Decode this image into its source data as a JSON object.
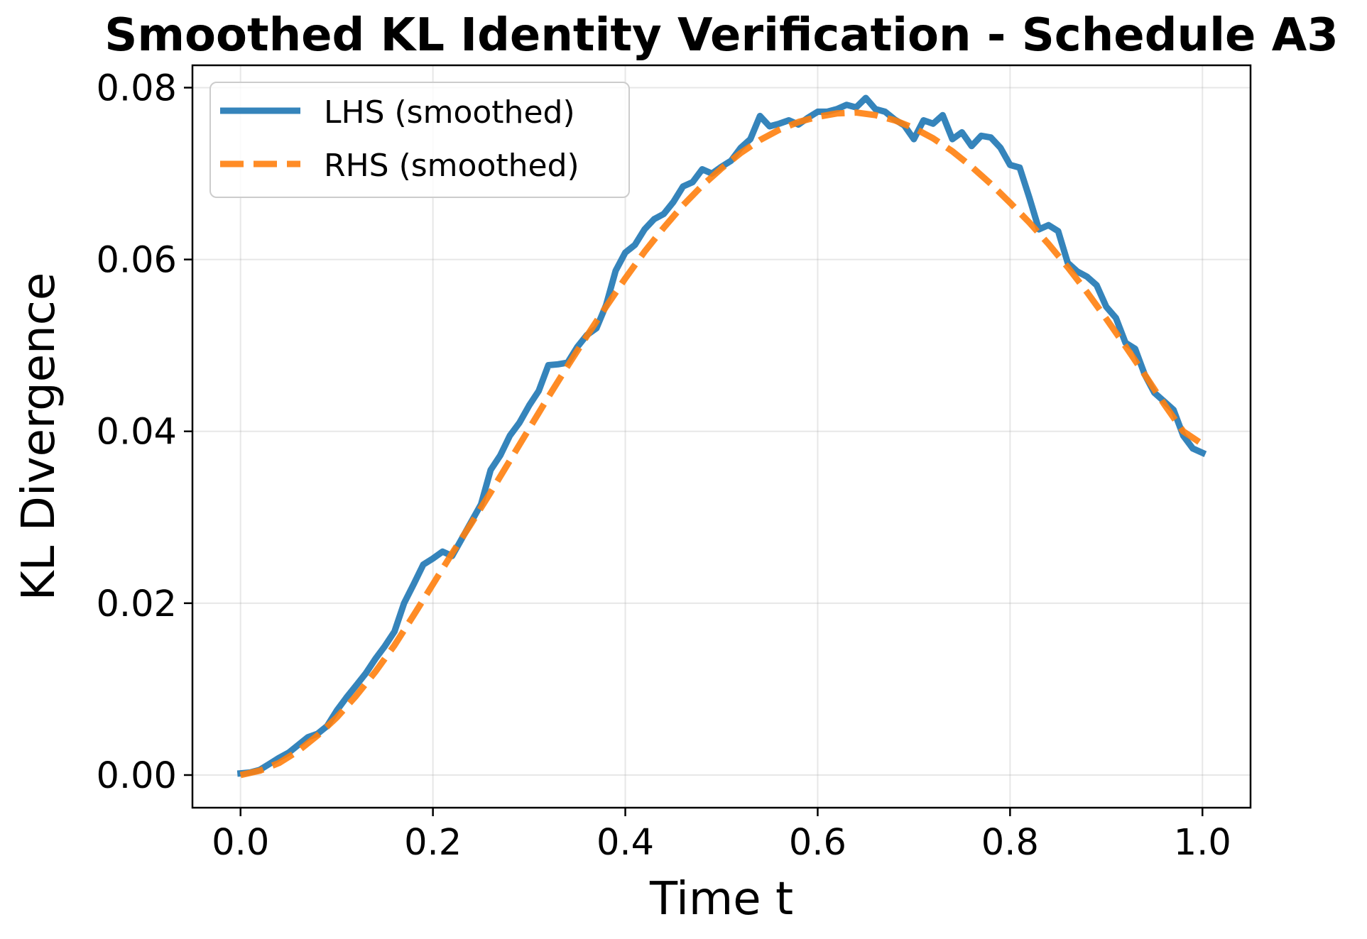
{
  "chart_data": {
    "type": "line",
    "title": "Smoothed KL Identity Verification - Schedule A3",
    "xlabel": "Time t",
    "ylabel": "KL Divergence",
    "xlim": [
      -0.05,
      1.05
    ],
    "ylim": [
      -0.0038,
      0.0826
    ],
    "x_ticks": [
      0.0,
      0.2,
      0.4,
      0.6,
      0.8,
      1.0
    ],
    "x_tick_labels": [
      "0.0",
      "0.2",
      "0.4",
      "0.6",
      "0.8",
      "1.0"
    ],
    "y_ticks": [
      0.0,
      0.02,
      0.04,
      0.06,
      0.08
    ],
    "y_tick_labels": [
      "0.00",
      "0.02",
      "0.04",
      "0.06",
      "0.08"
    ],
    "grid": true,
    "legend_position": "upper-left",
    "series": [
      {
        "name": "LHS (smoothed)",
        "color": "#1f77b4",
        "style": "solid",
        "points": [
          [
            0.0,
            0.0002
          ],
          [
            0.01,
            0.0003
          ],
          [
            0.02,
            0.0006
          ],
          [
            0.03,
            0.0013
          ],
          [
            0.04,
            0.002
          ],
          [
            0.05,
            0.0026
          ],
          [
            0.06,
            0.0035
          ],
          [
            0.07,
            0.0044
          ],
          [
            0.08,
            0.0048
          ],
          [
            0.09,
            0.0057
          ],
          [
            0.1,
            0.0075
          ],
          [
            0.11,
            0.009
          ],
          [
            0.12,
            0.0104
          ],
          [
            0.13,
            0.0118
          ],
          [
            0.14,
            0.0135
          ],
          [
            0.15,
            0.015
          ],
          [
            0.16,
            0.0167
          ],
          [
            0.17,
            0.02
          ],
          [
            0.18,
            0.0222
          ],
          [
            0.19,
            0.0245
          ],
          [
            0.2,
            0.0252
          ],
          [
            0.21,
            0.026
          ],
          [
            0.22,
            0.0255
          ],
          [
            0.23,
            0.0275
          ],
          [
            0.24,
            0.0295
          ],
          [
            0.25,
            0.0315
          ],
          [
            0.26,
            0.0355
          ],
          [
            0.27,
            0.0372
          ],
          [
            0.28,
            0.0395
          ],
          [
            0.29,
            0.041
          ],
          [
            0.3,
            0.043
          ],
          [
            0.31,
            0.0447
          ],
          [
            0.32,
            0.0477
          ],
          [
            0.33,
            0.0478
          ],
          [
            0.34,
            0.048
          ],
          [
            0.35,
            0.0498
          ],
          [
            0.36,
            0.0512
          ],
          [
            0.37,
            0.052
          ],
          [
            0.38,
            0.0547
          ],
          [
            0.39,
            0.0587
          ],
          [
            0.4,
            0.0608
          ],
          [
            0.41,
            0.0617
          ],
          [
            0.42,
            0.0635
          ],
          [
            0.43,
            0.0647
          ],
          [
            0.44,
            0.0653
          ],
          [
            0.45,
            0.0667
          ],
          [
            0.46,
            0.0685
          ],
          [
            0.47,
            0.069
          ],
          [
            0.48,
            0.0705
          ],
          [
            0.49,
            0.07
          ],
          [
            0.5,
            0.0708
          ],
          [
            0.51,
            0.0715
          ],
          [
            0.52,
            0.073
          ],
          [
            0.53,
            0.074
          ],
          [
            0.54,
            0.0767
          ],
          [
            0.55,
            0.0755
          ],
          [
            0.56,
            0.0758
          ],
          [
            0.57,
            0.0762
          ],
          [
            0.58,
            0.0757
          ],
          [
            0.59,
            0.0765
          ],
          [
            0.6,
            0.0772
          ],
          [
            0.61,
            0.0772
          ],
          [
            0.62,
            0.0775
          ],
          [
            0.63,
            0.078
          ],
          [
            0.64,
            0.0777
          ],
          [
            0.65,
            0.0788
          ],
          [
            0.66,
            0.0775
          ],
          [
            0.67,
            0.0772
          ],
          [
            0.68,
            0.0763
          ],
          [
            0.69,
            0.0756
          ],
          [
            0.7,
            0.074
          ],
          [
            0.71,
            0.0762
          ],
          [
            0.72,
            0.0758
          ],
          [
            0.73,
            0.0768
          ],
          [
            0.74,
            0.074
          ],
          [
            0.75,
            0.0748
          ],
          [
            0.76,
            0.0732
          ],
          [
            0.77,
            0.0744
          ],
          [
            0.78,
            0.0742
          ],
          [
            0.79,
            0.073
          ],
          [
            0.8,
            0.071
          ],
          [
            0.81,
            0.0707
          ],
          [
            0.82,
            0.0672
          ],
          [
            0.83,
            0.0635
          ],
          [
            0.84,
            0.064
          ],
          [
            0.85,
            0.0633
          ],
          [
            0.86,
            0.0596
          ],
          [
            0.87,
            0.0586
          ],
          [
            0.88,
            0.058
          ],
          [
            0.89,
            0.057
          ],
          [
            0.9,
            0.0545
          ],
          [
            0.91,
            0.0532
          ],
          [
            0.92,
            0.0503
          ],
          [
            0.93,
            0.0496
          ],
          [
            0.94,
            0.0466
          ],
          [
            0.95,
            0.0445
          ],
          [
            0.96,
            0.0435
          ],
          [
            0.97,
            0.0425
          ],
          [
            0.98,
            0.0395
          ],
          [
            0.99,
            0.038
          ],
          [
            1.0,
            0.0375
          ]
        ]
      },
      {
        "name": "RHS (smoothed)",
        "color": "#ff7f0e",
        "style": "dashed",
        "points": [
          [
            0.0,
            0.0
          ],
          [
            0.02,
            0.0005
          ],
          [
            0.04,
            0.0014
          ],
          [
            0.06,
            0.0028
          ],
          [
            0.08,
            0.0046
          ],
          [
            0.1,
            0.0067
          ],
          [
            0.12,
            0.0092
          ],
          [
            0.14,
            0.012
          ],
          [
            0.16,
            0.0151
          ],
          [
            0.18,
            0.0186
          ],
          [
            0.2,
            0.0222
          ],
          [
            0.22,
            0.0258
          ],
          [
            0.24,
            0.0293
          ],
          [
            0.26,
            0.0329
          ],
          [
            0.28,
            0.0366
          ],
          [
            0.3,
            0.0403
          ],
          [
            0.32,
            0.044
          ],
          [
            0.34,
            0.0476
          ],
          [
            0.36,
            0.0511
          ],
          [
            0.38,
            0.0545
          ],
          [
            0.4,
            0.0578
          ],
          [
            0.42,
            0.0609
          ],
          [
            0.44,
            0.0637
          ],
          [
            0.46,
            0.0663
          ],
          [
            0.48,
            0.0686
          ],
          [
            0.5,
            0.0706
          ],
          [
            0.52,
            0.0724
          ],
          [
            0.54,
            0.0739
          ],
          [
            0.56,
            0.0751
          ],
          [
            0.58,
            0.076
          ],
          [
            0.6,
            0.0766
          ],
          [
            0.62,
            0.077
          ],
          [
            0.64,
            0.0771
          ],
          [
            0.66,
            0.0768
          ],
          [
            0.68,
            0.0762
          ],
          [
            0.7,
            0.0753
          ],
          [
            0.72,
            0.0741
          ],
          [
            0.74,
            0.0726
          ],
          [
            0.76,
            0.0708
          ],
          [
            0.78,
            0.0688
          ],
          [
            0.8,
            0.0666
          ],
          [
            0.82,
            0.0643
          ],
          [
            0.84,
            0.0618
          ],
          [
            0.86,
            0.0591
          ],
          [
            0.88,
            0.0562
          ],
          [
            0.9,
            0.0531
          ],
          [
            0.92,
            0.0499
          ],
          [
            0.94,
            0.0466
          ],
          [
            0.96,
            0.0432
          ],
          [
            0.98,
            0.04
          ],
          [
            1.0,
            0.0385
          ]
        ]
      }
    ]
  }
}
